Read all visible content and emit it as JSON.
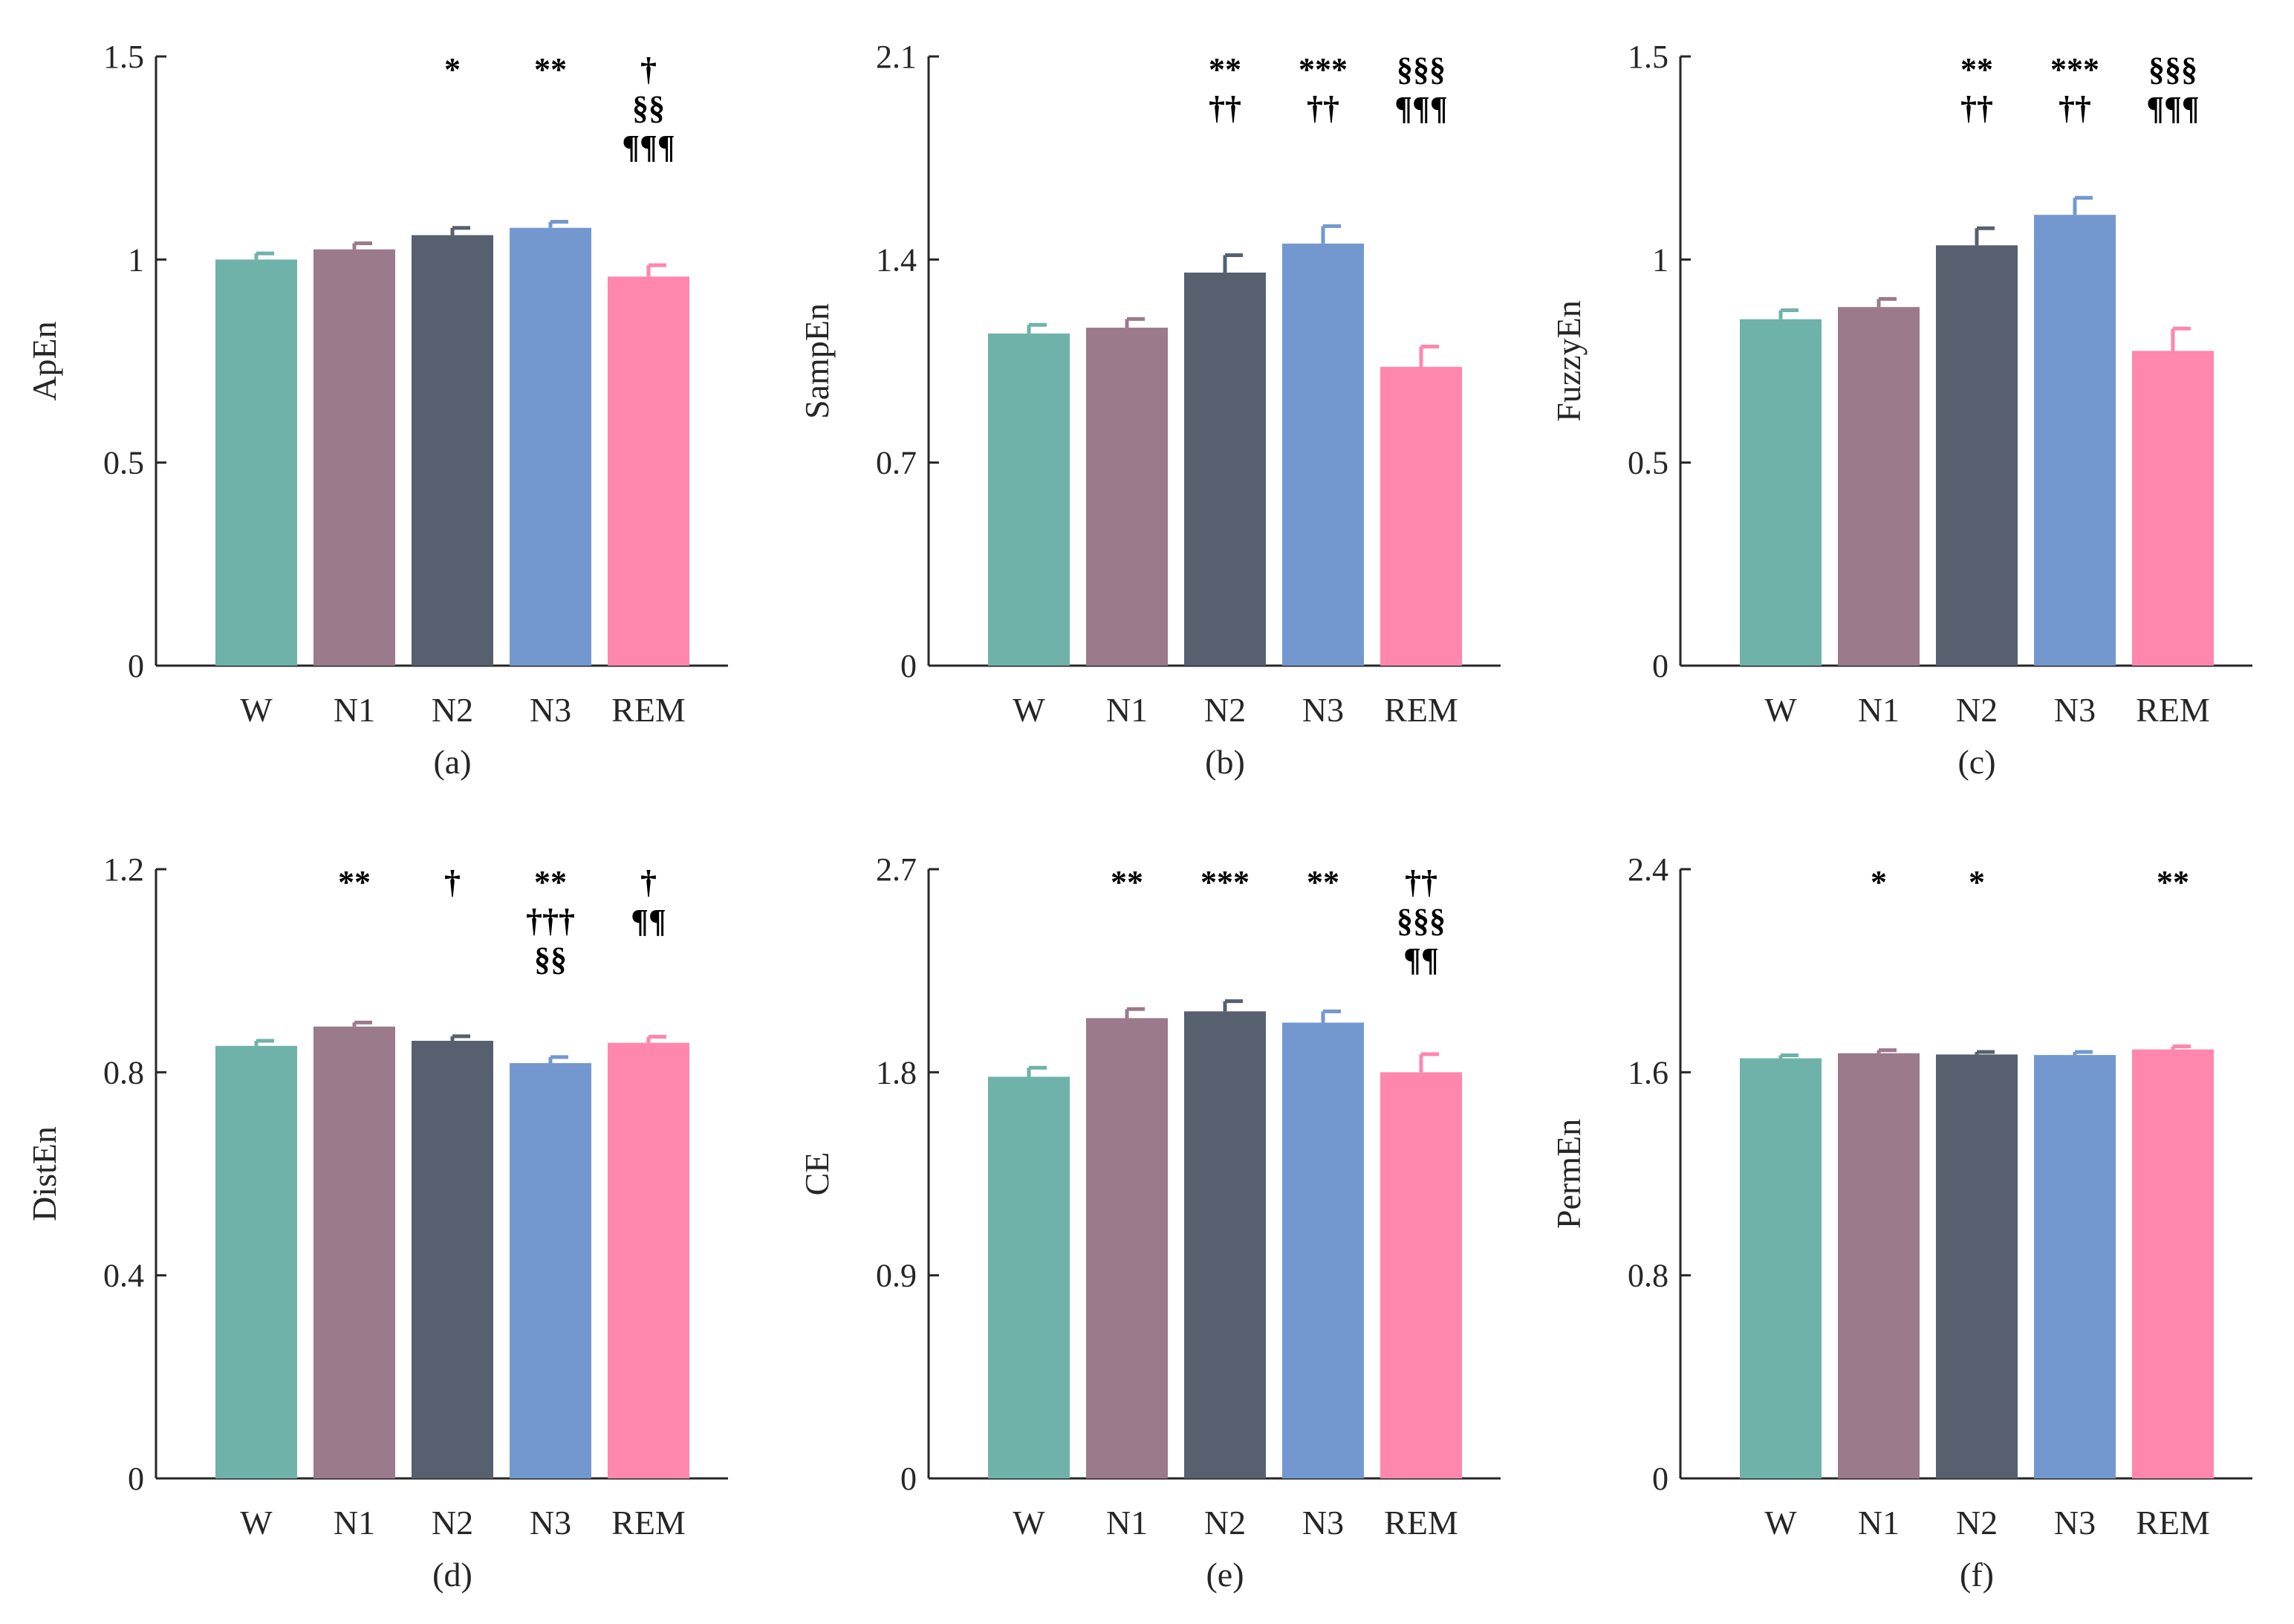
{
  "figure": {
    "colors": {
      "W": "#6fb2aa",
      "N1": "#9b7a8c",
      "N2": "#56606e",
      "N3": "#7398cf",
      "REM": "#ff86ac",
      "axis": "#262626"
    }
  },
  "chart_data": [
    {
      "type": "bar",
      "title": "",
      "caption": "(a)",
      "ylabel": "ApEn",
      "xlabel": "",
      "categories": [
        "W",
        "N1",
        "N2",
        "N3",
        "REM"
      ],
      "values": [
        1.0,
        1.025,
        1.06,
        1.078,
        0.958
      ],
      "errors": [
        0.015,
        0.015,
        0.018,
        0.015,
        0.028
      ],
      "ylim": [
        0,
        1.5
      ],
      "yticks": [
        0,
        0.5,
        1,
        1.5
      ],
      "ytick_labels": [
        "0",
        "0.5",
        "1",
        "1.5"
      ],
      "significance": [
        [],
        [],
        [
          "*"
        ],
        [
          "**"
        ],
        [
          "†",
          "§§",
          "¶¶¶"
        ]
      ]
    },
    {
      "type": "bar",
      "title": "",
      "caption": "(b)",
      "ylabel": "SampEn",
      "xlabel": "",
      "categories": [
        "W",
        "N1",
        "N2",
        "N3",
        "REM"
      ],
      "values": [
        1.145,
        1.165,
        1.355,
        1.455,
        1.03
      ],
      "errors": [
        0.03,
        0.03,
        0.06,
        0.06,
        0.07
      ],
      "ylim": [
        0,
        2.1
      ],
      "yticks": [
        0,
        0.7,
        1.4,
        2.1
      ],
      "ytick_labels": [
        "0",
        "0.7",
        "1.4",
        "2.1"
      ],
      "significance": [
        [],
        [],
        [
          "**",
          "††"
        ],
        [
          "***",
          "††"
        ],
        [
          "§§§",
          "¶¶¶"
        ]
      ]
    },
    {
      "type": "bar",
      "title": "",
      "caption": "(c)",
      "ylabel": "FuzzyEn",
      "xlabel": "",
      "categories": [
        "W",
        "N1",
        "N2",
        "N3",
        "REM"
      ],
      "values": [
        0.853,
        0.883,
        1.035,
        1.11,
        0.775
      ],
      "errors": [
        0.022,
        0.02,
        0.042,
        0.042,
        0.055
      ],
      "ylim": [
        0,
        1.5
      ],
      "yticks": [
        0,
        0.5,
        1,
        1.5
      ],
      "ytick_labels": [
        "0",
        "0.5",
        "1",
        "1.5"
      ],
      "significance": [
        [],
        [],
        [
          "**",
          "††"
        ],
        [
          "***",
          "††"
        ],
        [
          "§§§",
          "¶¶¶"
        ]
      ]
    },
    {
      "type": "bar",
      "title": "",
      "caption": "(d)",
      "ylabel": "DistEn",
      "xlabel": "",
      "categories": [
        "W",
        "N1",
        "N2",
        "N3",
        "REM"
      ],
      "values": [
        0.852,
        0.89,
        0.862,
        0.818,
        0.858
      ],
      "errors": [
        0.01,
        0.008,
        0.009,
        0.012,
        0.012
      ],
      "ylim": [
        0,
        1.2
      ],
      "yticks": [
        0,
        0.4,
        0.8,
        1.2
      ],
      "ytick_labels": [
        "0",
        "0.4",
        "0.8",
        "1.2"
      ],
      "significance": [
        [],
        [
          "**"
        ],
        [
          "†"
        ],
        [
          "**",
          "†††",
          "§§"
        ],
        [
          "†",
          "¶¶"
        ]
      ]
    },
    {
      "type": "bar",
      "title": "",
      "caption": "(e)",
      "ylabel": "CE",
      "xlabel": "",
      "categories": [
        "W",
        "N1",
        "N2",
        "N3",
        "REM"
      ],
      "values": [
        1.78,
        2.04,
        2.07,
        2.02,
        1.8
      ],
      "errors": [
        0.04,
        0.04,
        0.045,
        0.05,
        0.08
      ],
      "ylim": [
        0,
        2.7
      ],
      "yticks": [
        0,
        0.9,
        1.8,
        2.7
      ],
      "ytick_labels": [
        "0",
        "0.9",
        "1.8",
        "2.7"
      ],
      "significance": [
        [],
        [
          "**"
        ],
        [
          "***"
        ],
        [
          "**"
        ],
        [
          "††",
          "§§§",
          "¶¶"
        ]
      ]
    },
    {
      "type": "bar",
      "title": "",
      "caption": "(f)",
      "ylabel": "PermEn",
      "xlabel": "",
      "categories": [
        "W",
        "N1",
        "N2",
        "N3",
        "REM"
      ],
      "values": [
        1.655,
        1.675,
        1.67,
        1.668,
        1.69
      ],
      "errors": [
        0.012,
        0.012,
        0.01,
        0.012,
        0.012
      ],
      "ylim": [
        0,
        2.4
      ],
      "yticks": [
        0,
        0.8,
        1.6,
        2.4
      ],
      "ytick_labels": [
        "0",
        "0.8",
        "1.6",
        "2.4"
      ],
      "significance": [
        [],
        [
          "*"
        ],
        [
          "*"
        ],
        [],
        [
          "**"
        ]
      ]
    }
  ]
}
